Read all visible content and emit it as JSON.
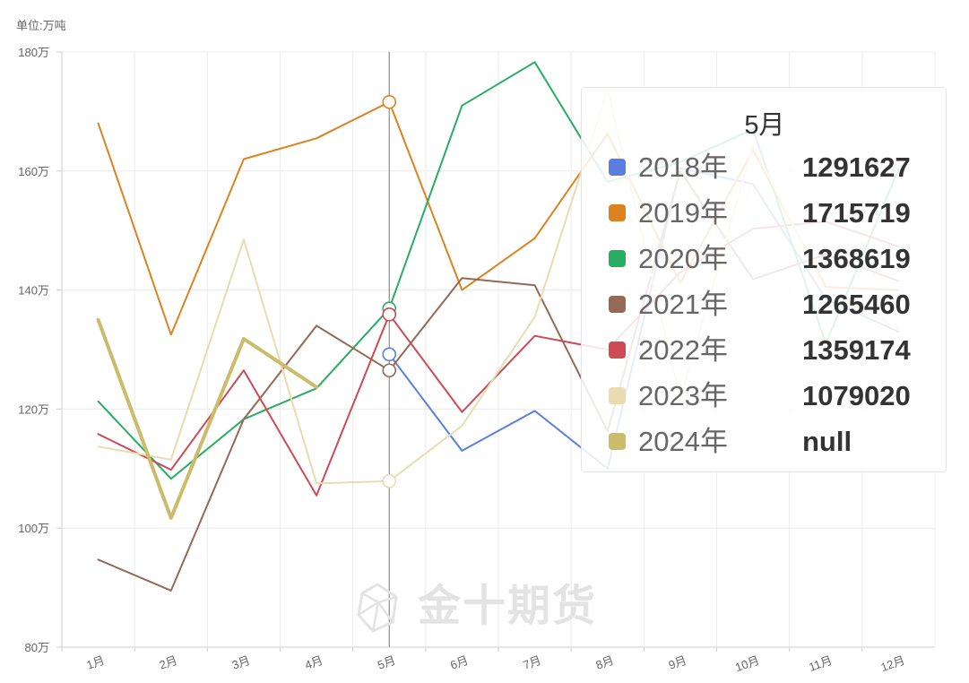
{
  "unit_label": "单位:万吨",
  "watermark": {
    "text": "金十期货",
    "icon": "jin10-logo-icon"
  },
  "tooltip": {
    "title": "5月",
    "rows": [
      {
        "name": "2018年",
        "value": "1291627",
        "color": "#5b7fe0"
      },
      {
        "name": "2019年",
        "value": "1715719",
        "color": "#dc8320"
      },
      {
        "name": "2020年",
        "value": "1368619",
        "color": "#29ad62"
      },
      {
        "name": "2021年",
        "value": "1265460",
        "color": "#946a56"
      },
      {
        "name": "2022年",
        "value": "1359174",
        "color": "#cc4b55"
      },
      {
        "name": "2023年",
        "value": "1079020",
        "color": "#e8dcb0"
      },
      {
        "name": "2024年",
        "value": "null",
        "color": "#ccbb6a"
      }
    ]
  },
  "chart_data": {
    "type": "line",
    "categories": [
      "1月",
      "2月",
      "3月",
      "4月",
      "5月",
      "6月",
      "7月",
      "8月",
      "9月",
      "10月",
      "11月",
      "12月"
    ],
    "ylim": [
      80,
      180
    ],
    "yticks": [
      80,
      100,
      120,
      140,
      160,
      180
    ],
    "ytick_labels": [
      "80万",
      "100万",
      "120万",
      "140万",
      "160万",
      "180万"
    ],
    "grid": true,
    "highlight_index": 4,
    "series": [
      {
        "name": "2018年",
        "color": "#5b7fe0",
        "values": [
          null,
          null,
          null,
          null,
          129.2,
          113.0,
          119.7,
          110.0,
          160.5,
          157.8,
          138.5,
          133.0
        ]
      },
      {
        "name": "2019年",
        "color": "#dc8320",
        "values": [
          168.0,
          132.5,
          162.0,
          165.5,
          171.6,
          140.0,
          148.7,
          166.3,
          141.2,
          163.5,
          140.5,
          140.0
        ]
      },
      {
        "name": "2020年",
        "color": "#29ad62",
        "values": [
          121.3,
          108.3,
          118.3,
          123.5,
          136.9,
          171.0,
          178.3,
          158.2,
          161.5,
          167.0,
          131.0,
          160.3
        ]
      },
      {
        "name": "2021年",
        "color": "#946a56",
        "values": [
          94.7,
          89.5,
          118.3,
          134.0,
          126.5,
          142.0,
          140.8,
          116.3,
          160.0,
          141.8,
          146.0,
          141.5
        ]
      },
      {
        "name": "2022年",
        "color": "#cc4b55",
        "values": [
          115.8,
          109.8,
          126.5,
          105.5,
          135.9,
          119.5,
          132.3,
          130.0,
          143.0,
          150.3,
          151.5,
          147.3
        ]
      },
      {
        "name": "2023年",
        "color": "#e8dcb0",
        "values": [
          113.7,
          111.5,
          148.5,
          107.5,
          107.9,
          117.2,
          135.5,
          173.7,
          121.8,
          164.3,
          140.0,
          133.5
        ]
      },
      {
        "name": "2024年",
        "color": "#ccbb6a",
        "values": [
          135.0,
          101.7,
          131.8,
          123.7,
          null,
          null,
          null,
          null,
          null,
          null,
          null,
          null
        ]
      }
    ]
  }
}
